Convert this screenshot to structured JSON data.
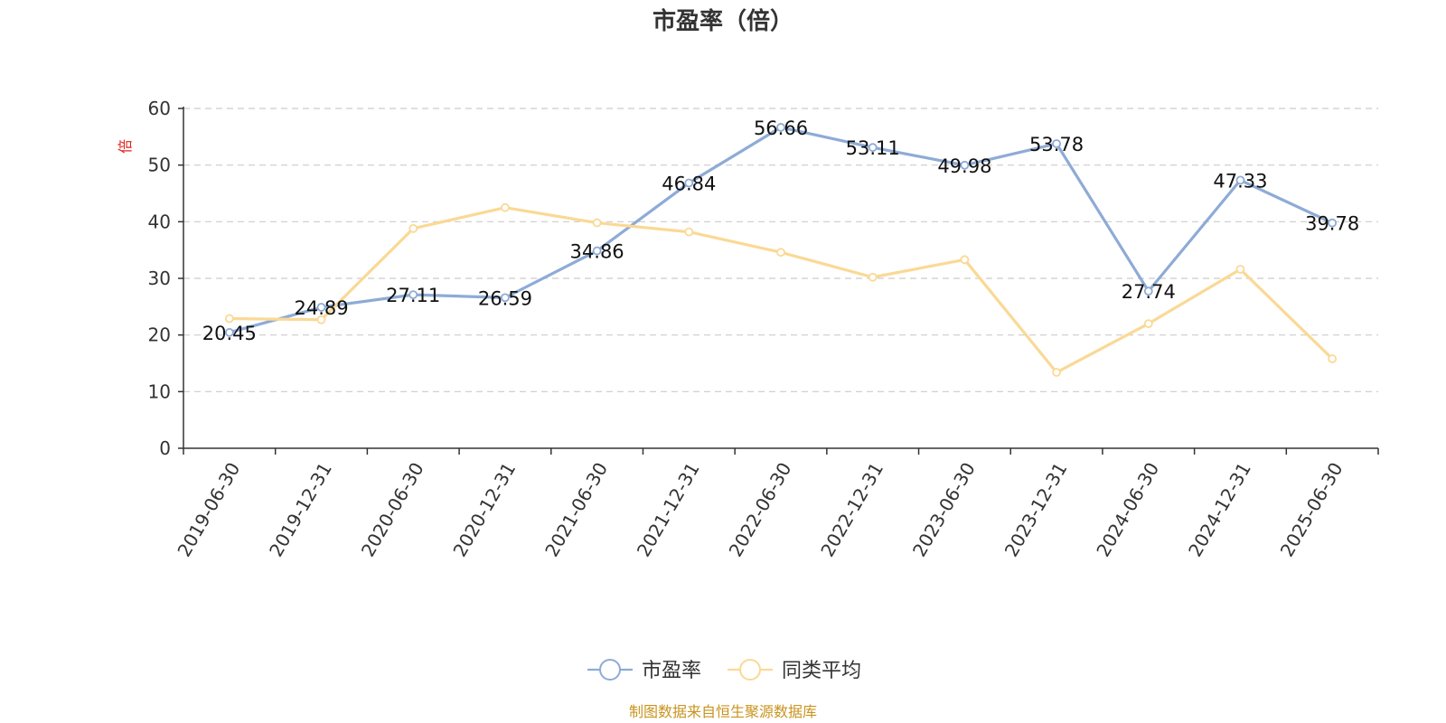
{
  "chart_data": {
    "type": "line",
    "title": "市盈率（倍）",
    "ylabel": "倍",
    "ylim": [
      0,
      60
    ],
    "yticks": [
      0,
      10,
      20,
      30,
      40,
      50,
      60
    ],
    "grid": true,
    "legend_position": "bottom-center",
    "categories": [
      "2019-06-30",
      "2019-12-31",
      "2020-06-30",
      "2020-12-31",
      "2021-06-30",
      "2021-12-31",
      "2022-06-30",
      "2022-12-31",
      "2023-06-30",
      "2023-12-31",
      "2024-06-30",
      "2024-12-31",
      "2025-06-30"
    ],
    "series": [
      {
        "name": "市盈率",
        "color": "#8eabd6",
        "show_labels": true,
        "values": [
          20.45,
          24.89,
          27.11,
          26.59,
          34.86,
          46.84,
          56.66,
          53.11,
          49.98,
          53.78,
          27.74,
          47.33,
          39.78
        ]
      },
      {
        "name": "同类平均",
        "color": "#fad995",
        "show_labels": false,
        "values": [
          22.9,
          22.7,
          38.8,
          42.5,
          39.8,
          38.2,
          34.6,
          30.2,
          33.3,
          13.4,
          22.0,
          31.6,
          15.8
        ]
      }
    ]
  },
  "colors": {
    "unit_label": "#e0211b",
    "source_text": "#c8941e",
    "axis": "#333333",
    "grid": "#cccccc"
  },
  "footer": {
    "source": "制图数据来自恒生聚源数据库"
  }
}
